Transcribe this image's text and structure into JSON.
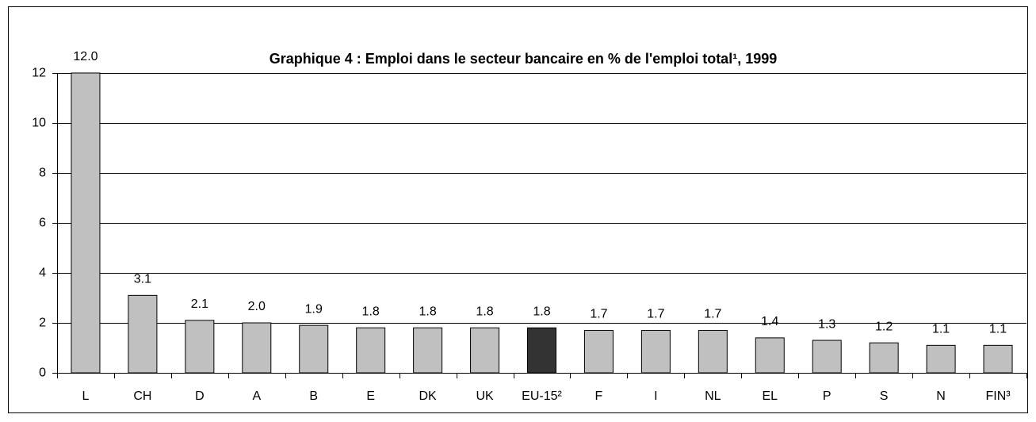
{
  "chart_data": {
    "type": "bar",
    "title": "Graphique 4 : Emploi dans le secteur bancaire en % de l'emploi total¹, 1999",
    "categories": [
      "L",
      "CH",
      "D",
      "A",
      "B",
      "E",
      "DK",
      "UK",
      "EU-15²",
      "F",
      "I",
      "NL",
      "EL",
      "P",
      "S",
      "N",
      "FIN³"
    ],
    "values": [
      12.0,
      3.1,
      2.1,
      2.0,
      1.9,
      1.8,
      1.8,
      1.8,
      1.8,
      1.7,
      1.7,
      1.7,
      1.4,
      1.3,
      1.2,
      1.1,
      1.1
    ],
    "value_labels": [
      "12.0",
      "3.1",
      "2.1",
      "2.0",
      "1.9",
      "1.8",
      "1.8",
      "1.8",
      "1.8",
      "1.7",
      "1.7",
      "1.7",
      "1.4",
      "1.3",
      "1.2",
      "1.1",
      "1.1"
    ],
    "colors": [
      "#c0c0c0",
      "#c0c0c0",
      "#c0c0c0",
      "#c0c0c0",
      "#c0c0c0",
      "#c0c0c0",
      "#c0c0c0",
      "#c0c0c0",
      "#333333",
      "#c0c0c0",
      "#c0c0c0",
      "#c0c0c0",
      "#c0c0c0",
      "#c0c0c0",
      "#c0c0c0",
      "#c0c0c0",
      "#c0c0c0"
    ],
    "ylim": [
      0,
      12
    ],
    "yticks": [
      0,
      2,
      4,
      6,
      8,
      10,
      12
    ],
    "grid": true
  }
}
